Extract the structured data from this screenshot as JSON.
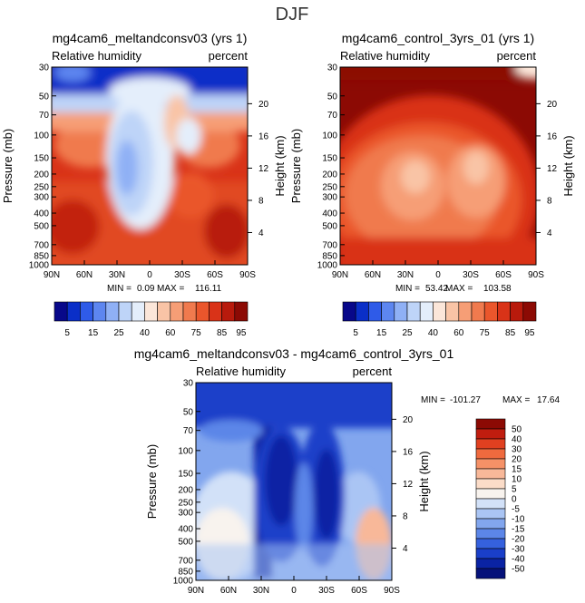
{
  "page_title": "DJF",
  "chart_data": [
    {
      "type": "heatmap",
      "title": "mg4cam6_meltandconsv03 (yrs 1)",
      "subtitle_left": "Relative humidity",
      "subtitle_right": "percent",
      "ylabel": "Pressure (mb)",
      "ylabel_right": "Height (km)",
      "x_ticks": [
        "90N",
        "60N",
        "30N",
        "0",
        "30S",
        "60S",
        "90S"
      ],
      "y_ticks": [
        "1000",
        "850",
        "700",
        "500",
        "400",
        "300",
        "250",
        "200",
        "150",
        "100",
        "70",
        "50",
        "30"
      ],
      "y_ticks_right": [
        "4",
        "8",
        "12",
        "16",
        "20"
      ],
      "min_label": "MIN =",
      "min_value": "0.09",
      "max_label": "MAX =",
      "max_value": "116.11",
      "colorbar_levels": [
        "5",
        "15",
        "25",
        "40",
        "60",
        "75",
        "85",
        "95"
      ]
    },
    {
      "type": "heatmap",
      "title": "mg4cam6_control_3yrs_01 (yrs 1)",
      "subtitle_left": "Relative humidity",
      "subtitle_right": "percent",
      "ylabel": "Pressure (mb)",
      "ylabel_right": "Height (km)",
      "x_ticks": [
        "90N",
        "60N",
        "30N",
        "0",
        "30S",
        "60S",
        "90S"
      ],
      "y_ticks": [
        "1000",
        "850",
        "700",
        "500",
        "400",
        "300",
        "250",
        "200",
        "150",
        "100",
        "70",
        "50",
        "30"
      ],
      "y_ticks_right": [
        "4",
        "8",
        "12",
        "16",
        "20"
      ],
      "min_label": "MIN =",
      "min_value": "53.42",
      "max_label": "MAX =",
      "max_value": "103.58",
      "colorbar_levels": [
        "5",
        "15",
        "25",
        "40",
        "60",
        "75",
        "85",
        "95"
      ]
    },
    {
      "type": "heatmap",
      "title": "mg4cam6_meltandconsv03 - mg4cam6_control_3yrs_01",
      "subtitle_left": "Relative humidity",
      "subtitle_right": "percent",
      "ylabel": "Pressure (mb)",
      "ylabel_right": "Height (km)",
      "x_ticks": [
        "90N",
        "60N",
        "30N",
        "0",
        "30S",
        "60S",
        "90S"
      ],
      "y_ticks": [
        "1000",
        "850",
        "700",
        "500",
        "400",
        "300",
        "250",
        "200",
        "150",
        "100",
        "70",
        "50",
        "30"
      ],
      "y_ticks_right": [
        "4",
        "8",
        "12",
        "16",
        "20"
      ],
      "min_label": "MIN =",
      "min_value": "-101.27",
      "max_label": "MAX =",
      "max_value": "17.64",
      "colorbar_levels": [
        "50",
        "40",
        "30",
        "20",
        "15",
        "10",
        "5",
        "0",
        "-5",
        "-10",
        "-15",
        "-20",
        "-30",
        "-40",
        "-50"
      ]
    }
  ],
  "colors": {
    "scale_abs": [
      "#08088a",
      "#0a2fc8",
      "#2f5be8",
      "#5d86f0",
      "#8fb0f5",
      "#bed4f8",
      "#e4eefb",
      "#fbe6d9",
      "#f9c4a6",
      "#f69e76",
      "#f07a4e",
      "#ea562c",
      "#d93318",
      "#b81a0c",
      "#8c0a04"
    ],
    "scale_diff": [
      "#8c0a04",
      "#c01d0f",
      "#e04020",
      "#ef6a3e",
      "#f59167",
      "#f8b899",
      "#fbdcc8",
      "#f8f3ee",
      "#d2e1f8",
      "#aac5f4",
      "#82a6ee",
      "#5c86e8",
      "#3561de",
      "#1a3fc9",
      "#0a23a4",
      "#06127a"
    ]
  }
}
